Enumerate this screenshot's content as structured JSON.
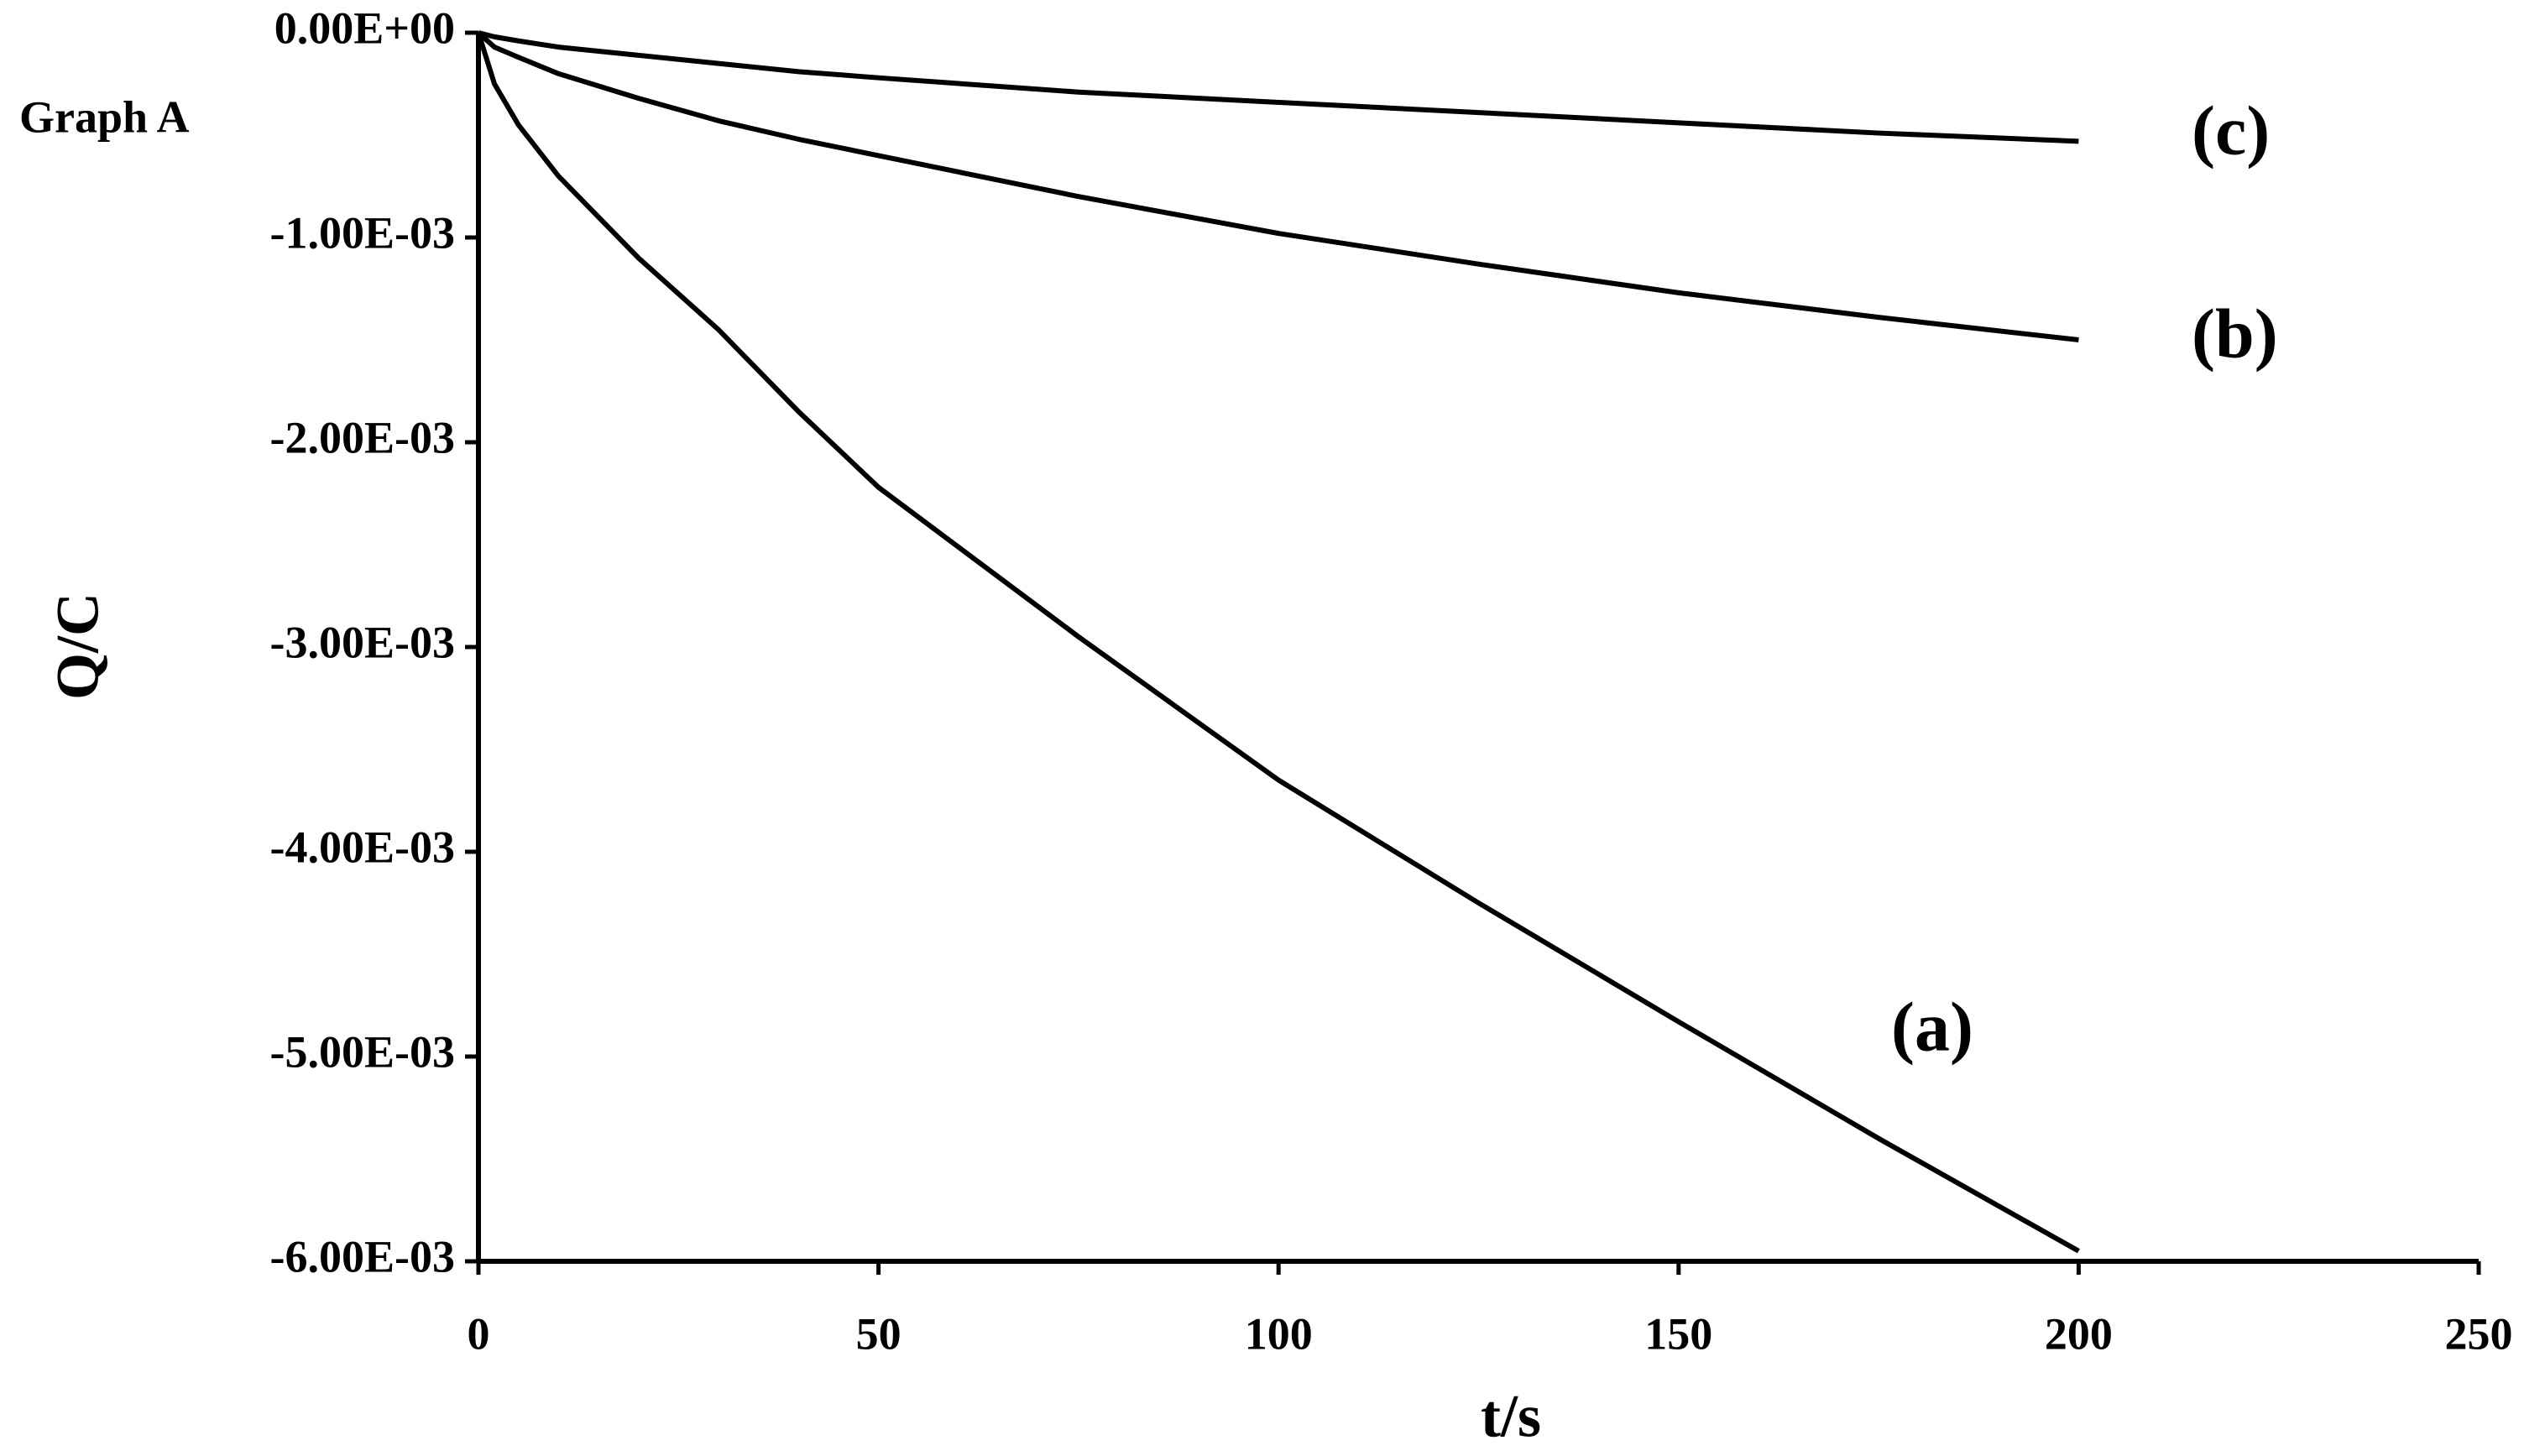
{
  "chart_data": {
    "type": "line",
    "annotations": [
      "Graph A"
    ],
    "x_label": "t/s",
    "y_label": "Q/C",
    "x": [
      0,
      2,
      5,
      10,
      20,
      30,
      40,
      50,
      75,
      100,
      125,
      150,
      175,
      200
    ],
    "series": [
      {
        "name": "(a)",
        "color": "#000000",
        "values": [
          0,
          -0.00025,
          -0.00045,
          -0.0007,
          -0.0011,
          -0.00145,
          -0.00185,
          -0.00222,
          -0.00295,
          -0.00365,
          -0.00425,
          -0.00483,
          -0.0054,
          -0.00595
        ]
      },
      {
        "name": "(b)",
        "color": "#000000",
        "values": [
          0,
          -7e-05,
          -0.00012,
          -0.0002,
          -0.00032,
          -0.00043,
          -0.00052,
          -0.0006,
          -0.0008,
          -0.00098,
          -0.00113,
          -0.00127,
          -0.00139,
          -0.0015
        ]
      },
      {
        "name": "(c)",
        "color": "#000000",
        "values": [
          0,
          -2e-05,
          -4e-05,
          -7e-05,
          -0.00011,
          -0.00015,
          -0.00019,
          -0.00022,
          -0.00029,
          -0.00034,
          -0.00039,
          -0.00044,
          -0.00049,
          -0.00053
        ]
      }
    ],
    "xlim": [
      0,
      250
    ],
    "xticks": [
      0,
      50,
      100,
      150,
      200,
      250
    ],
    "ylim": [
      -0.006,
      0
    ],
    "yticks": [
      {
        "value": 0,
        "label": "0.00E+00"
      },
      {
        "value": -0.001,
        "label": "-1.00E-03"
      },
      {
        "value": -0.002,
        "label": "-2.00E-03"
      },
      {
        "value": -0.003,
        "label": "-3.00E-03"
      },
      {
        "value": -0.004,
        "label": "-4.00E-03"
      },
      {
        "value": -0.005,
        "label": "-5.00E-03"
      },
      {
        "value": -0.006,
        "label": "-6.00E-03"
      }
    ],
    "grid": false
  }
}
